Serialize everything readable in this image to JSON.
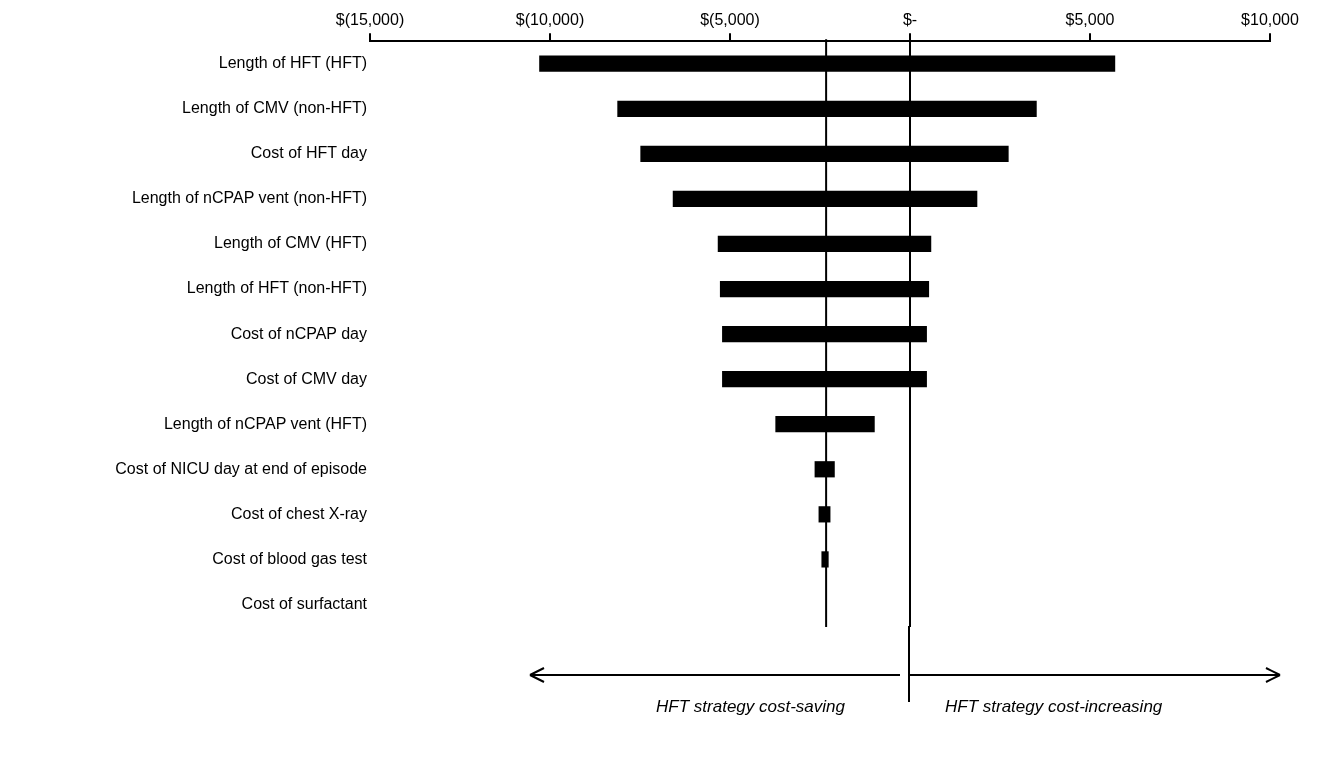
{
  "chart_data": {
    "type": "bar",
    "orientation": "horizontal",
    "categories": [
      "Length of HFT (HFT)",
      "Length of CMV (non-HFT)",
      "Cost of HFT day",
      "Length of nCPAP vent (non-HFT)",
      "Length of CMV (HFT)",
      "Length of HFT (non-HFT)",
      "Cost of nCPAP day",
      "Cost of CMV day",
      "Length of nCPAP vent (HFT)",
      "Cost of NICU day at end of episode",
      "Cost of chest X-ray",
      "Cost of blood gas test",
      "Cost of surfactant"
    ],
    "base": [
      -10300,
      -8130,
      -7490,
      -6590,
      -5340,
      -5280,
      -5220,
      -5220,
      -3740,
      -2650,
      -2540,
      -2460,
      null
    ],
    "values": [
      16000,
      11650,
      10230,
      8460,
      5930,
      5810,
      5690,
      5690,
      2760,
      560,
      330,
      200,
      null
    ],
    "color": "#000000",
    "xlim": [
      -15000,
      10000
    ],
    "xticks": [
      {
        "value": -15000,
        "label": "$(15,000)"
      },
      {
        "value": -10000,
        "label": "$(10,000)"
      },
      {
        "value": -5000,
        "label": "$(5,000)"
      },
      {
        "value": 0,
        "label": "$-"
      },
      {
        "value": 5000,
        "label": "$5,000"
      },
      {
        "value": 10000,
        "label": "$10,000"
      }
    ],
    "ref_lines": [
      {
        "axis": "x",
        "value": -2330
      },
      {
        "axis": "x",
        "value": 0
      }
    ],
    "annotations": [
      "HFT strategy cost-saving",
      "HFT strategy cost-increasing"
    ],
    "grid": false,
    "legend": false
  }
}
